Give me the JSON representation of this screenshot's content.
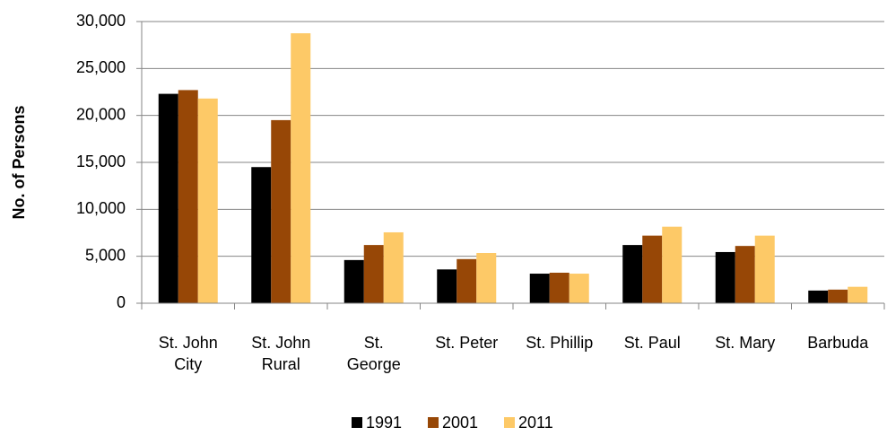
{
  "chart_data": {
    "type": "bar",
    "y_label": "No. of Persons",
    "categories": [
      "St. John\nCity",
      "St. John\nRural",
      "St.\nGeorge",
      "St. Peter",
      "St. Phillip",
      "St. Paul",
      "St. Mary",
      "Barbuda"
    ],
    "series": [
      {
        "name": "1991",
        "color": "#000000",
        "values": [
          22300,
          14500,
          4600,
          3600,
          3150,
          6200,
          5450,
          1350
        ]
      },
      {
        "name": "2001",
        "color": "#974706",
        "values": [
          22700,
          19500,
          6200,
          4700,
          3250,
          7200,
          6100,
          1450
        ]
      },
      {
        "name": "2011",
        "color": "#fdc967",
        "values": [
          21800,
          28750,
          7550,
          5350,
          3150,
          8150,
          7200,
          1750
        ]
      }
    ],
    "ylim": [
      0,
      30000
    ],
    "yticks": [
      0,
      {
        "value": 5000,
        "label": "5,000"
      },
      {
        "value": 10000,
        "label": "10,000"
      },
      {
        "value": 15000,
        "label": "15,000"
      },
      {
        "value": 20000,
        "label": "20,000"
      },
      {
        "value": 25000,
        "label": "25,000"
      },
      {
        "value": 30000,
        "label": "30,000"
      }
    ],
    "grid": true,
    "legend": "bottom"
  }
}
